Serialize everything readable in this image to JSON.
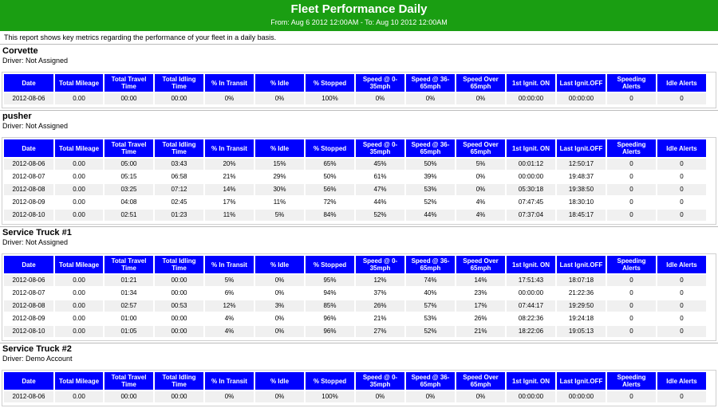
{
  "report": {
    "title": "Fleet Performance Daily",
    "subtitle": "From: Aug 6 2012 12:00AM - To: Aug 10 2012 12:00AM",
    "intro": "This report shows key metrics regarding the performance of your fleet in a daily basis."
  },
  "columns": [
    "Date",
    "Total Mileage",
    "Total Travel Time",
    "Total Idling Time",
    "% In Transit",
    "% Idle",
    "% Stopped",
    "Speed @ 0-35mph",
    "Speed @ 36-65mph",
    "Speed Over 65mph",
    "1st Ignit. ON",
    "Last Ignit.OFF",
    "Speeding Alerts",
    "Idle Alerts"
  ],
  "sections": [
    {
      "vehicle": "Corvette",
      "driver": "Driver: Not Assigned",
      "rows": [
        [
          "2012-08-06",
          "0.00",
          "00:00",
          "00:00",
          "0%",
          "0%",
          "100%",
          "0%",
          "0%",
          "0%",
          "00:00:00",
          "00:00:00",
          "0",
          "0"
        ]
      ]
    },
    {
      "vehicle": "pusher",
      "driver": "Driver: Not Assigned",
      "rows": [
        [
          "2012-08-06",
          "0.00",
          "05:00",
          "03:43",
          "20%",
          "15%",
          "65%",
          "45%",
          "50%",
          "5%",
          "00:01:12",
          "12:50:17",
          "0",
          "0"
        ],
        [
          "2012-08-07",
          "0.00",
          "05:15",
          "06:58",
          "21%",
          "29%",
          "50%",
          "61%",
          "39%",
          "0%",
          "00:00:00",
          "19:48:37",
          "0",
          "0"
        ],
        [
          "2012-08-08",
          "0.00",
          "03:25",
          "07:12",
          "14%",
          "30%",
          "56%",
          "47%",
          "53%",
          "0%",
          "05:30:18",
          "19:38:50",
          "0",
          "0"
        ],
        [
          "2012-08-09",
          "0.00",
          "04:08",
          "02:45",
          "17%",
          "11%",
          "72%",
          "44%",
          "52%",
          "4%",
          "07:47:45",
          "18:30:10",
          "0",
          "0"
        ],
        [
          "2012-08-10",
          "0.00",
          "02:51",
          "01:23",
          "11%",
          "5%",
          "84%",
          "52%",
          "44%",
          "4%",
          "07:37:04",
          "18:45:17",
          "0",
          "0"
        ]
      ]
    },
    {
      "vehicle": "Service Truck #1",
      "driver": "Driver: Not Assigned",
      "rows": [
        [
          "2012-08-06",
          "0.00",
          "01:21",
          "00:00",
          "5%",
          "0%",
          "95%",
          "12%",
          "74%",
          "14%",
          "17:51:43",
          "18:07:18",
          "0",
          "0"
        ],
        [
          "2012-08-07",
          "0.00",
          "01:34",
          "00:00",
          "6%",
          "0%",
          "94%",
          "37%",
          "40%",
          "23%",
          "00:00:00",
          "21:22:36",
          "0",
          "0"
        ],
        [
          "2012-08-08",
          "0.00",
          "02:57",
          "00:53",
          "12%",
          "3%",
          "85%",
          "26%",
          "57%",
          "17%",
          "07:44:17",
          "19:29:50",
          "0",
          "0"
        ],
        [
          "2012-08-09",
          "0.00",
          "01:00",
          "00:00",
          "4%",
          "0%",
          "96%",
          "21%",
          "53%",
          "26%",
          "08:22:36",
          "19:24:18",
          "0",
          "0"
        ],
        [
          "2012-08-10",
          "0.00",
          "01:05",
          "00:00",
          "4%",
          "0%",
          "96%",
          "27%",
          "52%",
          "21%",
          "18:22:06",
          "19:05:13",
          "0",
          "0"
        ]
      ]
    },
    {
      "vehicle": "Service Truck #2",
      "driver": "Driver: Demo Account",
      "rows": [
        [
          "2012-08-06",
          "0.00",
          "00:00",
          "00:00",
          "0%",
          "0%",
          "100%",
          "0%",
          "0%",
          "0%",
          "00:00:00",
          "00:00:00",
          "0",
          "0"
        ]
      ]
    }
  ]
}
